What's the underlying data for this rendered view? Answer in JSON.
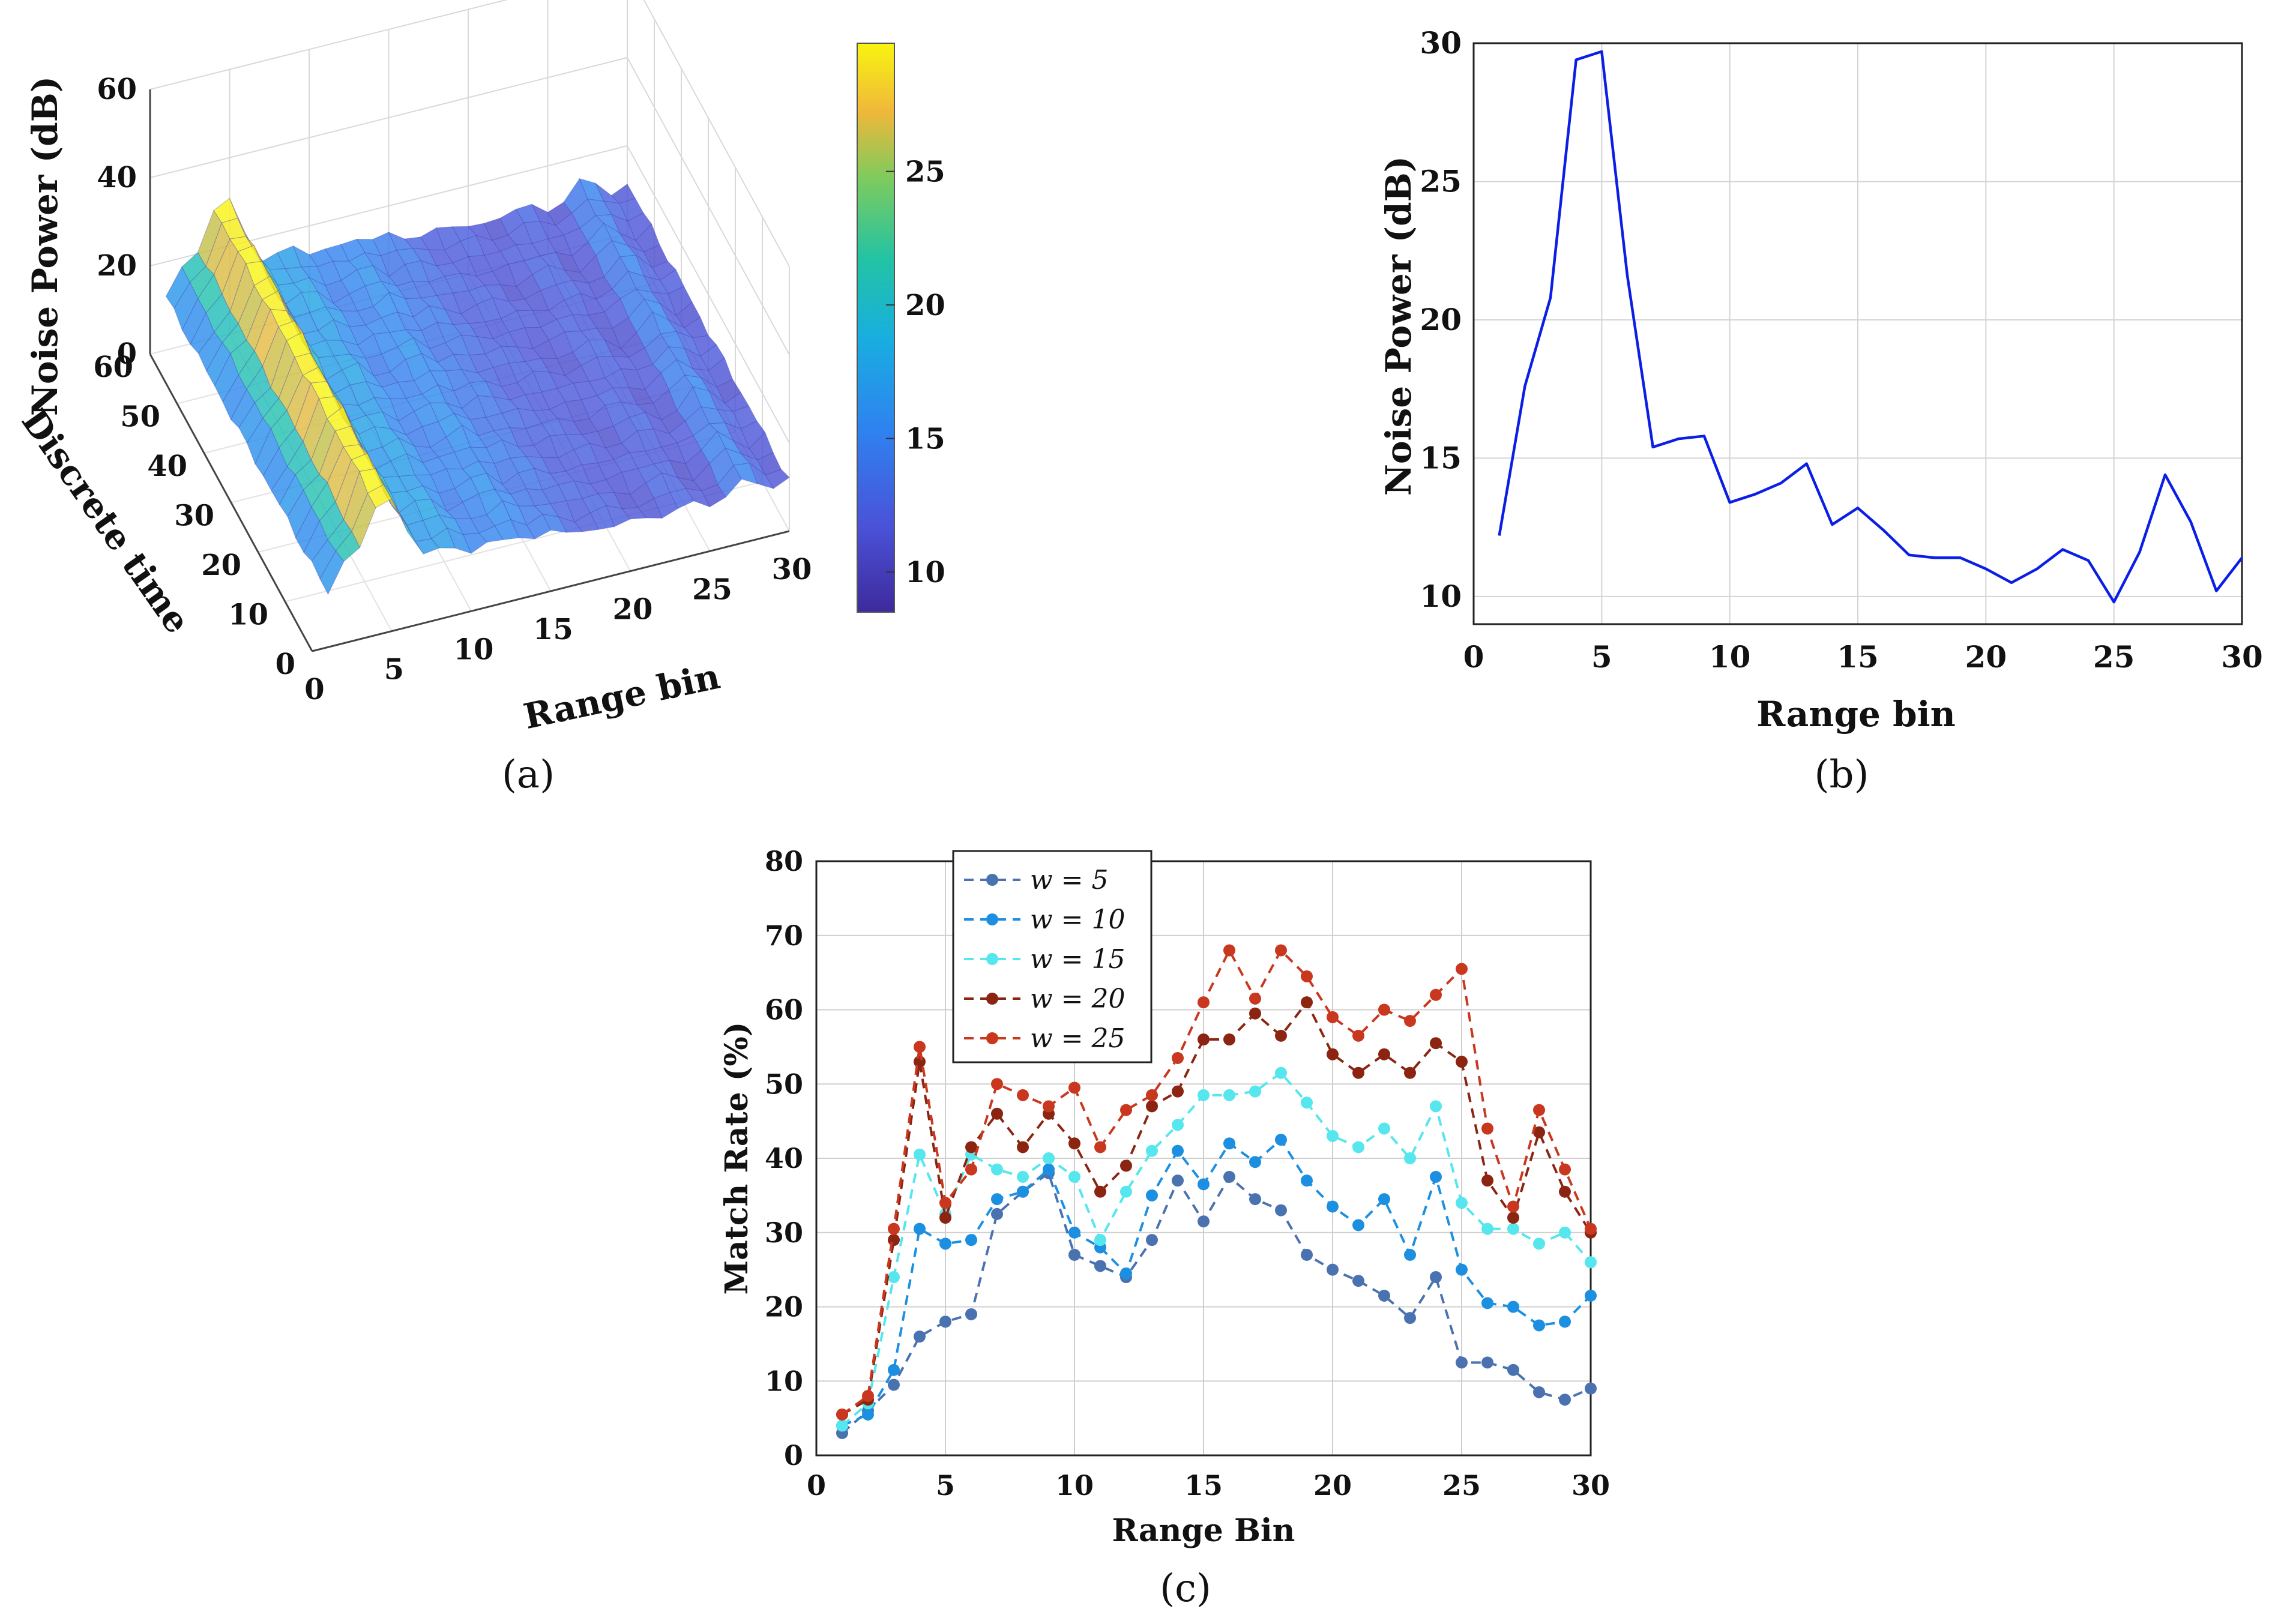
{
  "colors": {
    "b_line": "#0b1ee6",
    "w5": "#4a72b0",
    "w10": "#1c8fe0",
    "w15": "#55e6ee",
    "w20": "#8b2512",
    "w25": "#c9371e",
    "surface_low": "#5b52d6",
    "surface_mid": "#2fb6a8",
    "surface_high": "#f5e42a"
  },
  "chart_data": [
    {
      "id": "a",
      "type": "surface3d",
      "caption": "(a)",
      "xlabel": "Range bin",
      "ylabel": "Discrete time",
      "zlabel": "Noise Power (dB)",
      "x_ticks": [
        "0",
        "5",
        "10",
        "15",
        "20",
        "25",
        "30"
      ],
      "y_ticks": [
        "0",
        "10",
        "20",
        "30",
        "40",
        "50",
        "60"
      ],
      "z_ticks": [
        "0",
        "20",
        "40",
        "60"
      ],
      "xlim": [
        0,
        30
      ],
      "ylim": [
        0,
        60
      ],
      "zlim": [
        0,
        60
      ],
      "colorbar": {
        "ticks": [
          "10",
          "15",
          "20",
          "25"
        ],
        "values": [
          10,
          15,
          20,
          25
        ],
        "range": [
          8.5,
          29.8
        ]
      },
      "profile_x": [
        1,
        2,
        3,
        4,
        5,
        6,
        7,
        8,
        9,
        10,
        11,
        12,
        13,
        14,
        15,
        16,
        17,
        18,
        19,
        20,
        21,
        22,
        23,
        24,
        25,
        26,
        27,
        28,
        29,
        30
      ],
      "profile_z": [
        12,
        17.5,
        21,
        29.5,
        29.8,
        21.5,
        15.5,
        15.8,
        15.9,
        13.5,
        13.7,
        14.2,
        14.9,
        12.7,
        13.3,
        12.5,
        11.6,
        11.5,
        11.5,
        11.1,
        10.6,
        11.2,
        11.8,
        11.4,
        10,
        11.7,
        14.5,
        12.8,
        10.3,
        11.5
      ]
    },
    {
      "id": "b",
      "type": "line",
      "caption": "(b)",
      "xlabel": "Range bin",
      "ylabel": "Noise Power (dB)",
      "xlim": [
        0,
        30
      ],
      "ylim": [
        9,
        30
      ],
      "x_ticks": [
        0,
        5,
        10,
        15,
        20,
        25,
        30
      ],
      "y_ticks": [
        10,
        15,
        20,
        25,
        30
      ],
      "grid": true,
      "x": [
        1,
        2,
        3,
        4,
        5,
        6,
        7,
        8,
        9,
        10,
        11,
        12,
        13,
        14,
        15,
        16,
        17,
        18,
        19,
        20,
        21,
        22,
        23,
        24,
        25,
        26,
        27,
        28,
        29,
        30
      ],
      "y": [
        12.2,
        17.6,
        20.8,
        29.4,
        29.7,
        21.6,
        15.4,
        15.7,
        15.8,
        13.4,
        13.7,
        14.1,
        14.8,
        12.6,
        13.2,
        12.4,
        11.5,
        11.4,
        11.4,
        11.0,
        10.5,
        11.0,
        11.7,
        11.3,
        9.8,
        11.6,
        14.4,
        12.7,
        10.2,
        11.4
      ]
    },
    {
      "id": "c",
      "type": "line",
      "caption": "(c)",
      "xlabel": "Range Bin",
      "ylabel": "Match Rate (%)",
      "xlim": [
        0,
        30
      ],
      "ylim": [
        0,
        80
      ],
      "x_ticks": [
        0,
        5,
        10,
        15,
        20,
        25,
        30
      ],
      "y_ticks": [
        0,
        10,
        20,
        30,
        40,
        50,
        60,
        70,
        80
      ],
      "grid": true,
      "legend_position": "top-left",
      "x": [
        1,
        2,
        3,
        4,
        5,
        6,
        7,
        8,
        9,
        10,
        11,
        12,
        13,
        14,
        15,
        16,
        17,
        18,
        19,
        20,
        21,
        22,
        23,
        24,
        25,
        26,
        27,
        28,
        29,
        30
      ],
      "series": [
        {
          "name": "w = 5",
          "color_key": "w5",
          "values": [
            3,
            6,
            9.5,
            16,
            18,
            19,
            32.5,
            35.5,
            38,
            27,
            25.5,
            24,
            29,
            37,
            31.5,
            37.5,
            34.5,
            33,
            27,
            25,
            23.5,
            21.5,
            18.5,
            24,
            12.5,
            12.5,
            11.5,
            8.5,
            7.5,
            9
          ]
        },
        {
          "name": "w = 10",
          "color_key": "w10",
          "values": [
            4,
            5.5,
            11.5,
            30.5,
            28.5,
            29,
            34.5,
            35.5,
            38.5,
            30,
            28,
            24.5,
            35,
            41,
            36.5,
            42,
            39.5,
            42.5,
            37,
            33.5,
            31,
            34.5,
            27,
            37.5,
            25,
            20.5,
            20,
            17.5,
            18,
            21.5
          ]
        },
        {
          "name": "w = 15",
          "color_key": "w15",
          "values": [
            4,
            7,
            24,
            40.5,
            32.5,
            40.5,
            38.5,
            37.5,
            40,
            37.5,
            29,
            35.5,
            41,
            44.5,
            48.5,
            48.5,
            49,
            51.5,
            47.5,
            43,
            41.5,
            44,
            40,
            47,
            34,
            30.5,
            30.5,
            28.5,
            30,
            26
          ]
        },
        {
          "name": "w = 20",
          "color_key": "w20",
          "values": [
            5.5,
            7.5,
            29,
            53,
            32,
            41.5,
            46,
            41.5,
            46,
            42,
            35.5,
            39,
            47,
            49,
            56,
            56,
            59.5,
            56.5,
            61,
            54,
            51.5,
            54,
            51.5,
            55.5,
            53,
            37,
            32,
            43.5,
            35.5,
            30
          ]
        },
        {
          "name": "w = 25",
          "color_key": "w25",
          "values": [
            5.5,
            8,
            30.5,
            55,
            34,
            38.5,
            50,
            48.5,
            47,
            49.5,
            41.5,
            46.5,
            48.5,
            53.5,
            61,
            68,
            61.5,
            68,
            64.5,
            59,
            56.5,
            60,
            58.5,
            62,
            65.5,
            44,
            33.5,
            46.5,
            38.5,
            30.5
          ]
        }
      ]
    }
  ]
}
